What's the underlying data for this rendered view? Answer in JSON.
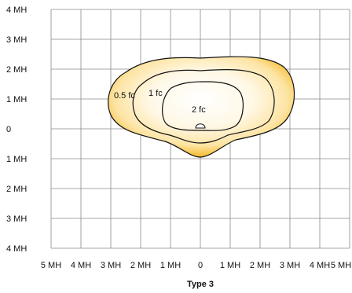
{
  "diagram": {
    "title": "Type 3",
    "x_labels": [
      "5 MH",
      "4 MH",
      "3 MH",
      "2 MH",
      "1 MH",
      "0",
      "1 MH",
      "2 MH",
      "3 MH",
      "4 MH",
      "5 MH"
    ],
    "y_labels": [
      "4 MH",
      "3 MH",
      "2 MH",
      "1 MH",
      "0",
      "1 MH",
      "2 MH",
      "3 MH",
      "4 MH"
    ],
    "contour_labels": {
      "outer": "0.5 fc",
      "middle": "1 fc",
      "inner": "2 fc"
    },
    "colors": {
      "grid": "#8a8a8a",
      "contour_line": "#111111",
      "fill_edge": "#f2a900",
      "fill_center": "#ffffff"
    }
  }
}
